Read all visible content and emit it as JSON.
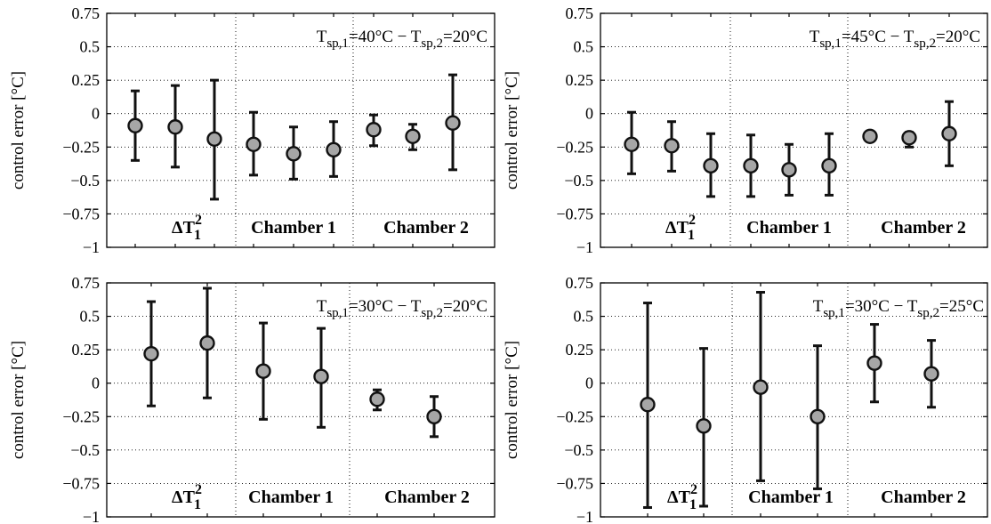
{
  "chart_data": [
    {
      "type": "scatter",
      "annotation": {
        "base": "T",
        "sub1": "sp,1",
        "val1": "=40°C − ",
        "sub2": "sp,2",
        "val2": "=20°C"
      },
      "ylabel": "control error [°C]",
      "ylim": [
        -1,
        0.75
      ],
      "yticks": [
        -1,
        -0.75,
        -0.5,
        -0.25,
        0,
        0.25,
        0.5,
        0.75
      ],
      "ytick_labels": [
        "−1",
        "−0.75",
        "−0.5",
        "−0.25",
        "0",
        "0.25",
        "0.5",
        "0.75"
      ],
      "groups": [
        {
          "label_base": "ΔT",
          "label_sub": "1",
          "label_sup": "2",
          "label_kind": "math"
        },
        {
          "label": "Chamber 1"
        },
        {
          "label": "Chamber 2"
        }
      ],
      "points": [
        {
          "group": 0,
          "mean": -0.09,
          "low": -0.35,
          "high": 0.17
        },
        {
          "group": 0,
          "mean": -0.1,
          "low": -0.4,
          "high": 0.21
        },
        {
          "group": 0,
          "mean": -0.19,
          "low": -0.64,
          "high": 0.25
        },
        {
          "group": 1,
          "mean": -0.23,
          "low": -0.46,
          "high": 0.01
        },
        {
          "group": 1,
          "mean": -0.3,
          "low": -0.49,
          "high": -0.1
        },
        {
          "group": 1,
          "mean": -0.27,
          "low": -0.47,
          "high": -0.06
        },
        {
          "group": 2,
          "mean": -0.12,
          "low": -0.24,
          "high": -0.01
        },
        {
          "group": 2,
          "mean": -0.17,
          "low": -0.27,
          "high": -0.08
        },
        {
          "group": 2,
          "mean": -0.07,
          "low": -0.42,
          "high": 0.29
        }
      ]
    },
    {
      "type": "scatter",
      "annotation": {
        "base": "T",
        "sub1": "sp,1",
        "val1": "=45°C − ",
        "sub2": "sp,2",
        "val2": "=20°C"
      },
      "ylabel": "control error [°C]",
      "ylim": [
        -1,
        0.75
      ],
      "yticks": [
        -1,
        -0.75,
        -0.5,
        -0.25,
        0,
        0.25,
        0.5,
        0.75
      ],
      "ytick_labels": [
        "−1",
        "−0.75",
        "−0.5",
        "−0.25",
        "0",
        "0.25",
        "0.5",
        "0.75"
      ],
      "groups": [
        {
          "label_base": "ΔT",
          "label_sub": "1",
          "label_sup": "2",
          "label_kind": "math-light"
        },
        {
          "label": "Chamber 1"
        },
        {
          "label": "Chamber 2"
        }
      ],
      "points": [
        {
          "group": 0,
          "mean": -0.23,
          "low": -0.45,
          "high": 0.01
        },
        {
          "group": 0,
          "mean": -0.24,
          "low": -0.43,
          "high": -0.06
        },
        {
          "group": 0,
          "mean": -0.39,
          "low": -0.62,
          "high": -0.15
        },
        {
          "group": 1,
          "mean": -0.39,
          "low": -0.62,
          "high": -0.16
        },
        {
          "group": 1,
          "mean": -0.42,
          "low": -0.61,
          "high": -0.23
        },
        {
          "group": 1,
          "mean": -0.39,
          "low": -0.61,
          "high": -0.15
        },
        {
          "group": 2,
          "mean": -0.17,
          "low": -0.17,
          "high": -0.17
        },
        {
          "group": 2,
          "mean": -0.18,
          "low": -0.25,
          "high": -0.14
        },
        {
          "group": 2,
          "mean": -0.15,
          "low": -0.39,
          "high": 0.09
        }
      ]
    },
    {
      "type": "scatter",
      "annotation": {
        "base": "T",
        "sub1": "sp,1",
        "val1": "=30°C − ",
        "sub2": "sp,2",
        "val2": "=20°C"
      },
      "ylabel": "control error [°C]",
      "ylim": [
        -1,
        0.75
      ],
      "yticks": [
        -1,
        -0.75,
        -0.5,
        -0.25,
        0,
        0.25,
        0.5,
        0.75
      ],
      "ytick_labels": [
        "−1",
        "−0.75",
        "−0.5",
        "−0.25",
        "0",
        "0.25",
        "0.5",
        "0.75"
      ],
      "groups": [
        {
          "label_base": "ΔT",
          "label_sub": "1",
          "label_sup": "2",
          "label_kind": "math"
        },
        {
          "label": "Chamber 1"
        },
        {
          "label": "Chamber 2"
        }
      ],
      "points": [
        {
          "group": 0,
          "mean": 0.22,
          "low": -0.17,
          "high": 0.61
        },
        {
          "group": 0,
          "mean": 0.3,
          "low": -0.11,
          "high": 0.71
        },
        {
          "group": 1,
          "mean": 0.09,
          "low": -0.27,
          "high": 0.45
        },
        {
          "group": 1,
          "mean": 0.05,
          "low": -0.33,
          "high": 0.41
        },
        {
          "group": 2,
          "mean": -0.12,
          "low": -0.2,
          "high": -0.05
        },
        {
          "group": 2,
          "mean": -0.25,
          "low": -0.4,
          "high": -0.1
        }
      ]
    },
    {
      "type": "scatter",
      "annotation": {
        "base": "T",
        "sub1": "sp,1",
        "val1": "=30°C − ",
        "sub2": "sp,2",
        "val2": "=25°C"
      },
      "ylabel": "control error [°C]",
      "ylim": [
        -1,
        0.75
      ],
      "yticks": [
        -1,
        -0.75,
        -0.5,
        -0.25,
        0,
        0.25,
        0.5,
        0.75
      ],
      "ytick_labels": [
        "−1",
        "−0.75",
        "−0.5",
        "−0.25",
        "0",
        "0.25",
        "0.5",
        "0.75"
      ],
      "groups": [
        {
          "label_base": "ΔT",
          "label_sub": "1",
          "label_sup": "2",
          "label_kind": "math"
        },
        {
          "label": "Chamber 1"
        },
        {
          "label": "Chamber 2"
        }
      ],
      "points": [
        {
          "group": 0,
          "mean": -0.16,
          "low": -0.93,
          "high": 0.6
        },
        {
          "group": 0,
          "mean": -0.32,
          "low": -0.92,
          "high": 0.26
        },
        {
          "group": 1,
          "mean": -0.03,
          "low": -0.73,
          "high": 0.68
        },
        {
          "group": 1,
          "mean": -0.25,
          "low": -0.79,
          "high": 0.28
        },
        {
          "group": 2,
          "mean": 0.15,
          "low": -0.14,
          "high": 0.44
        },
        {
          "group": 2,
          "mean": 0.07,
          "low": -0.18,
          "high": 0.32
        }
      ]
    }
  ],
  "style": {
    "marker_fill": "#a6a6a6",
    "line_color": "#111111",
    "grid": "on",
    "grid_style": "dotted",
    "x_tick_labels": "none"
  }
}
